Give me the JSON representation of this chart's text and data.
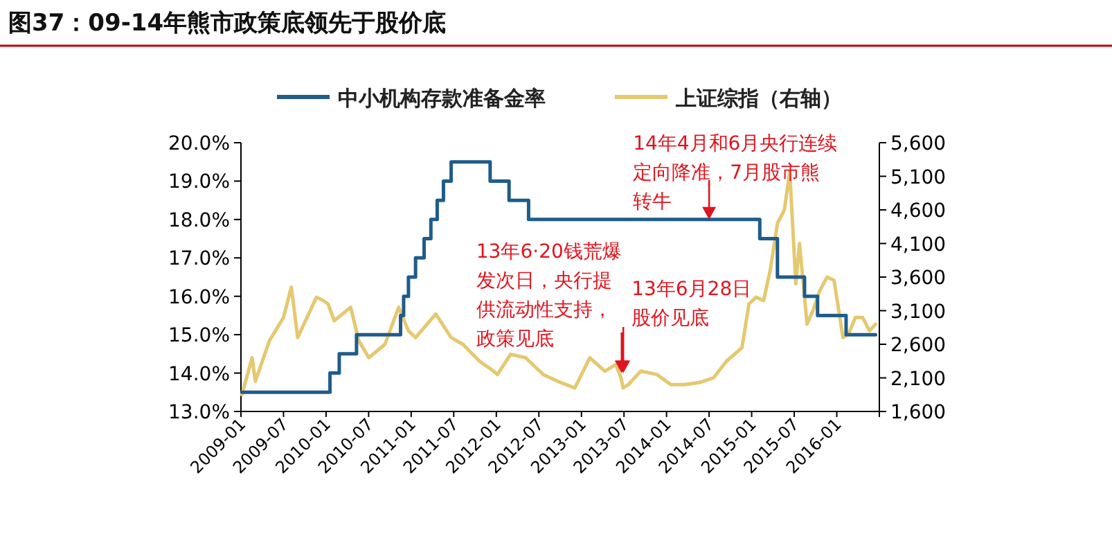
{
  "chart_data": {
    "type": "line",
    "title": "图37：09-14年熊市政策底领先于股价底",
    "xlim": [
      "2009-01",
      "2016-07"
    ],
    "xticks": [
      "2009-01",
      "2009-07",
      "2010-01",
      "2010-07",
      "2011-01",
      "2011-07",
      "2012-01",
      "2012-07",
      "2013-01",
      "2013-07",
      "2014-01",
      "2014-07",
      "2015-01",
      "2015-07",
      "2016-01"
    ],
    "ylim": [
      13,
      20
    ],
    "yticks": [
      {
        "value": 13,
        "label": "13.0%"
      },
      {
        "value": 14,
        "label": "14.0%"
      },
      {
        "value": 15,
        "label": "15.0%"
      },
      {
        "value": 16,
        "label": "16.0%"
      },
      {
        "value": 17,
        "label": "17.0%"
      },
      {
        "value": 18,
        "label": "18.0%"
      },
      {
        "value": 19,
        "label": "19.0%"
      },
      {
        "value": 20,
        "label": "20.0%"
      }
    ],
    "y2lim": [
      1600,
      5600
    ],
    "y2ticks": [
      {
        "value": 1600,
        "label": "1,600"
      },
      {
        "value": 2100,
        "label": "2,100"
      },
      {
        "value": 2600,
        "label": "2,600"
      },
      {
        "value": 3100,
        "label": "3,100"
      },
      {
        "value": 3600,
        "label": "3,600"
      },
      {
        "value": 4100,
        "label": "4,100"
      },
      {
        "value": 4600,
        "label": "4,600"
      },
      {
        "value": 5100,
        "label": "5,100"
      },
      {
        "value": 5600,
        "label": "5,600"
      }
    ],
    "legend": "top",
    "grid": false,
    "series": [
      {
        "name": "中小机构存款准备金率",
        "type": "step",
        "color": "#1f5c8a",
        "x": [
          "2009-01-05",
          "2010-01-18",
          "2010-02-25",
          "2010-05-10",
          "2010-11-16",
          "2010-11-29",
          "2010-12-20",
          "2011-01-20",
          "2011-02-24",
          "2011-03-25",
          "2011-04-21",
          "2011-05-18",
          "2011-06-20",
          "2011-12-05",
          "2012-02-24",
          "2012-05-18",
          "2015-02-05",
          "2015-04-20",
          "2015-08-15",
          "2015-10-10",
          "2016-02-10",
          "2016-06-15"
        ],
        "values": [
          13.5,
          14.0,
          14.5,
          15.0,
          15.5,
          16.0,
          16.5,
          17.0,
          17.5,
          18.0,
          18.5,
          19.0,
          19.5,
          19.0,
          18.5,
          18.0,
          17.5,
          16.5,
          16.0,
          15.5,
          15.0,
          15.0
        ]
      },
      {
        "name": "上证综指（右轴）",
        "axis": "y2",
        "color": "#e5c870",
        "x": [
          "2009-01-05",
          "2009-02-17",
          "2009-03-02",
          "2009-05-01",
          "2009-07-01",
          "2009-08-04",
          "2009-09-01",
          "2009-11-20",
          "2009-12-20",
          "2010-01-10",
          "2010-02-05",
          "2010-04-15",
          "2010-05-20",
          "2010-07-02",
          "2010-09-10",
          "2010-11-08",
          "2010-12-20",
          "2011-01-20",
          "2011-04-15",
          "2011-06-20",
          "2011-08-10",
          "2011-10-20",
          "2011-12-20",
          "2012-01-06",
          "2012-03-01",
          "2012-05-05",
          "2012-07-20",
          "2012-09-20",
          "2012-12-03",
          "2013-02-06",
          "2013-04-10",
          "2013-05-28",
          "2013-06-20",
          "2013-06-27",
          "2013-07-20",
          "2013-09-12",
          "2013-11-20",
          "2014-01-20",
          "2014-03-15",
          "2014-05-20",
          "2014-07-20",
          "2014-09-15",
          "2014-11-20",
          "2014-12-20",
          "2015-01-20",
          "2015-02-20",
          "2015-03-20",
          "2015-04-20",
          "2015-05-20",
          "2015-06-12",
          "2015-07-08",
          "2015-07-24",
          "2015-08-26",
          "2015-09-20",
          "2015-10-20",
          "2015-11-20",
          "2015-12-20",
          "2016-01-28",
          "2016-02-20",
          "2016-03-20",
          "2016-04-20",
          "2016-05-20",
          "2016-06-15"
        ],
        "values": [
          1850,
          2400,
          2050,
          2650,
          3000,
          3450,
          2700,
          3300,
          3250,
          3200,
          2950,
          3150,
          2650,
          2400,
          2600,
          3150,
          2800,
          2700,
          3050,
          2700,
          2600,
          2350,
          2200,
          2150,
          2450,
          2400,
          2150,
          2050,
          1950,
          2400,
          2200,
          2300,
          2080,
          1950,
          2000,
          2200,
          2150,
          2000,
          2000,
          2030,
          2100,
          2350,
          2550,
          3200,
          3300,
          3250,
          3700,
          4400,
          4600,
          5170,
          3500,
          4100,
          2900,
          3100,
          3400,
          3600,
          3550,
          2700,
          2750,
          3000,
          3000,
          2800,
          2900
        ]
      }
    ],
    "annotations": [
      {
        "text": "14年4月和6月央行连续定向降准，7月股市熊转牛",
        "x": "2014-07-01",
        "y": 18.0
      },
      {
        "text": "13年6·20钱荒爆发次日，央行提供流动性支持，政策见底",
        "x": "2013-06-21",
        "y": 14.0
      },
      {
        "text": "13年6月28日股价见底",
        "x": "2013-06-28",
        "y": 14.0
      }
    ]
  }
}
